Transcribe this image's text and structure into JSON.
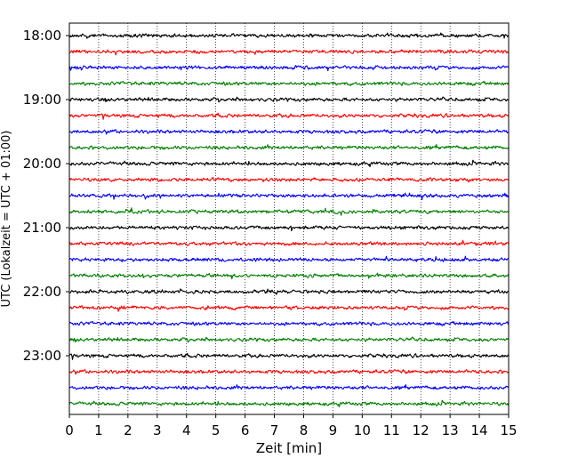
{
  "chart_data": {
    "type": "line",
    "title": "",
    "xlabel": "Zeit  [min]",
    "ylabel": "UTC (Lokalzeit = UTC + 01:00)",
    "xlim": [
      0,
      15
    ],
    "x_ticks": [
      "0",
      "1",
      "2",
      "3",
      "4",
      "5",
      "6",
      "7",
      "8",
      "9",
      "10",
      "11",
      "12",
      "13",
      "14",
      "15"
    ],
    "y_ticks": [
      "18:00",
      "19:00",
      "20:00",
      "21:00",
      "22:00",
      "23:00"
    ],
    "grid": "vertical dotted",
    "trace_interval_minutes": 15,
    "first_trace": "18:00",
    "traces": [
      {
        "start": "18:00",
        "color": "#000000"
      },
      {
        "start": "18:15",
        "color": "#ff0000"
      },
      {
        "start": "18:30",
        "color": "#0000ff"
      },
      {
        "start": "18:45",
        "color": "#007f00"
      },
      {
        "start": "19:00",
        "color": "#000000"
      },
      {
        "start": "19:15",
        "color": "#ff0000"
      },
      {
        "start": "19:30",
        "color": "#0000ff"
      },
      {
        "start": "19:45",
        "color": "#007f00"
      },
      {
        "start": "20:00",
        "color": "#000000"
      },
      {
        "start": "20:15",
        "color": "#ff0000"
      },
      {
        "start": "20:30",
        "color": "#0000ff"
      },
      {
        "start": "20:45",
        "color": "#007f00"
      },
      {
        "start": "21:00",
        "color": "#000000"
      },
      {
        "start": "21:15",
        "color": "#ff0000"
      },
      {
        "start": "21:30",
        "color": "#0000ff"
      },
      {
        "start": "21:45",
        "color": "#007f00"
      },
      {
        "start": "22:00",
        "color": "#000000"
      },
      {
        "start": "22:15",
        "color": "#ff0000"
      },
      {
        "start": "22:30",
        "color": "#0000ff"
      },
      {
        "start": "22:45",
        "color": "#007f00"
      },
      {
        "start": "23:00",
        "color": "#000000"
      },
      {
        "start": "23:15",
        "color": "#ff0000"
      },
      {
        "start": "23:30",
        "color": "#0000ff"
      },
      {
        "start": "23:45",
        "color": "#007f00"
      }
    ]
  }
}
